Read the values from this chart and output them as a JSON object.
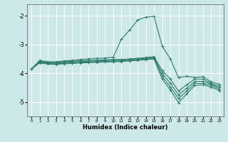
{
  "xlabel": "Humidex (Indice chaleur)",
  "bg_color": "#cce8e8",
  "grid_color": "#ffffff",
  "line_color": "#2e7d6e",
  "xlim": [
    -0.5,
    23.5
  ],
  "ylim": [
    -5.5,
    -1.6
  ],
  "yticks": [
    -5,
    -4,
    -3,
    -2
  ],
  "xticks": [
    0,
    1,
    2,
    3,
    4,
    5,
    6,
    7,
    8,
    9,
    10,
    11,
    12,
    13,
    14,
    15,
    16,
    17,
    18,
    19,
    20,
    21,
    22,
    23
  ],
  "lines": [
    {
      "x": [
        0,
        1,
        2,
        3,
        4,
        5,
        6,
        7,
        8,
        9,
        10,
        11,
        12,
        13,
        14,
        15,
        16,
        17,
        18,
        19,
        20,
        21,
        22,
        23
      ],
      "y": [
        -3.85,
        -3.55,
        -3.6,
        -3.6,
        -3.57,
        -3.55,
        -3.52,
        -3.5,
        -3.48,
        -3.47,
        -3.44,
        -2.82,
        -2.5,
        -2.15,
        -2.05,
        -2.02,
        -3.05,
        -3.5,
        -4.15,
        -4.1,
        -4.15,
        -4.12,
        -4.3,
        -4.38
      ]
    },
    {
      "x": [
        0,
        1,
        2,
        3,
        4,
        5,
        6,
        7,
        8,
        9,
        10,
        11,
        12,
        13,
        14,
        15,
        16,
        17,
        18,
        19,
        20,
        21,
        22,
        23
      ],
      "y": [
        -3.85,
        -3.58,
        -3.62,
        -3.62,
        -3.6,
        -3.58,
        -3.56,
        -3.55,
        -3.54,
        -3.53,
        -3.52,
        -3.52,
        -3.5,
        -3.48,
        -3.45,
        -3.42,
        -3.9,
        -4.2,
        -4.62,
        -4.4,
        -4.2,
        -4.2,
        -4.35,
        -4.45
      ]
    },
    {
      "x": [
        0,
        1,
        2,
        3,
        4,
        5,
        6,
        7,
        8,
        9,
        10,
        11,
        12,
        13,
        14,
        15,
        16,
        17,
        18,
        19,
        20,
        21,
        22,
        23
      ],
      "y": [
        -3.85,
        -3.6,
        -3.64,
        -3.65,
        -3.63,
        -3.61,
        -3.59,
        -3.58,
        -3.57,
        -3.56,
        -3.55,
        -3.54,
        -3.52,
        -3.5,
        -3.48,
        -3.45,
        -4.0,
        -4.35,
        -4.75,
        -4.52,
        -4.28,
        -4.28,
        -4.38,
        -4.5
      ]
    },
    {
      "x": [
        0,
        1,
        2,
        3,
        4,
        5,
        6,
        7,
        8,
        9,
        10,
        11,
        12,
        13,
        14,
        15,
        16,
        17,
        18,
        19,
        20,
        21,
        22,
        23
      ],
      "y": [
        -3.85,
        -3.62,
        -3.66,
        -3.67,
        -3.65,
        -3.64,
        -3.62,
        -3.61,
        -3.6,
        -3.59,
        -3.58,
        -3.57,
        -3.55,
        -3.53,
        -3.51,
        -3.48,
        -4.1,
        -4.48,
        -4.88,
        -4.62,
        -4.35,
        -4.35,
        -4.42,
        -4.55
      ]
    },
    {
      "x": [
        0,
        1,
        2,
        3,
        4,
        5,
        6,
        7,
        8,
        9,
        10,
        11,
        12,
        13,
        14,
        15,
        16,
        17,
        18,
        19,
        20,
        21,
        22,
        23
      ],
      "y": [
        -3.85,
        -3.64,
        -3.68,
        -3.69,
        -3.67,
        -3.66,
        -3.64,
        -3.63,
        -3.62,
        -3.61,
        -3.6,
        -3.59,
        -3.57,
        -3.55,
        -3.53,
        -3.5,
        -4.2,
        -4.58,
        -5.02,
        -4.72,
        -4.42,
        -4.4,
        -4.48,
        -4.6
      ]
    }
  ]
}
